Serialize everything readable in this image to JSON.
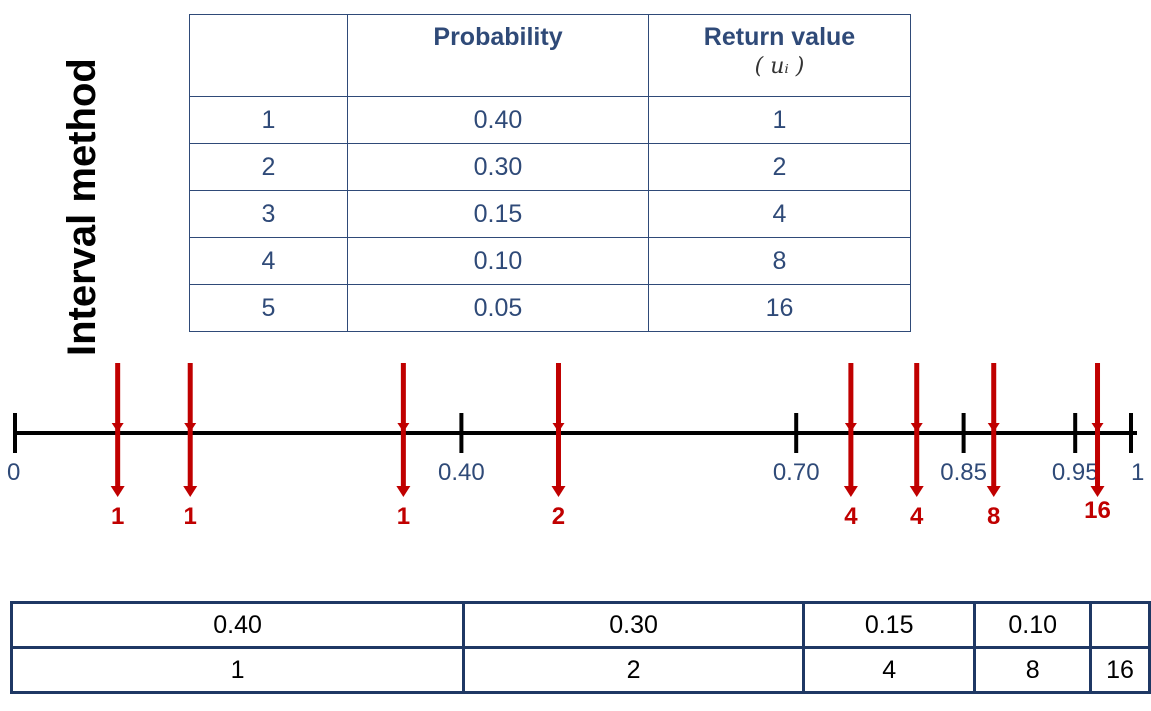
{
  "title": "Interval method",
  "table": {
    "headers": [
      "",
      "Probability",
      "Return value"
    ],
    "header_sub": "( uᵢ )",
    "rows": [
      {
        "index": "1",
        "prob": "0.40",
        "value": "1"
      },
      {
        "index": "2",
        "prob": "0.30",
        "value": "2"
      },
      {
        "index": "3",
        "prob": "0.15",
        "value": "4"
      },
      {
        "index": "4",
        "prob": "0.10",
        "value": "8"
      },
      {
        "index": "5",
        "prob": "0.05",
        "value": "16"
      }
    ]
  },
  "axis": {
    "range": [
      0,
      1
    ],
    "ticks": [
      {
        "value": 0,
        "label": "0"
      },
      {
        "value": 0.4,
        "label": "0.40"
      },
      {
        "value": 0.7,
        "label": "0.70"
      },
      {
        "value": 0.85,
        "label": "0.85"
      },
      {
        "value": 0.95,
        "label": "0.95"
      },
      {
        "value": 1,
        "label": "1"
      }
    ],
    "samples": [
      {
        "u": 0.092,
        "label": "1"
      },
      {
        "u": 0.157,
        "label": "1"
      },
      {
        "u": 0.348,
        "label": "1"
      },
      {
        "u": 0.487,
        "label": "2"
      },
      {
        "u": 0.749,
        "label": "4"
      },
      {
        "u": 0.808,
        "label": "4"
      },
      {
        "u": 0.877,
        "label": "8"
      },
      {
        "u": 0.97,
        "label": "16"
      }
    ],
    "colors": {
      "axis": "#000000",
      "arrow": "#c00000",
      "tick_label": "#2f4a78"
    }
  },
  "bar": {
    "cells": [
      {
        "prob": "0.40",
        "value": "1",
        "p": 0.4
      },
      {
        "prob": "0.30",
        "value": "2",
        "p": 0.3
      },
      {
        "prob": "0.15",
        "value": "4",
        "p": 0.15
      },
      {
        "prob": "0.10",
        "value": "8",
        "p": 0.1
      },
      {
        "prob": "",
        "value": "16",
        "p": 0.05
      }
    ]
  }
}
